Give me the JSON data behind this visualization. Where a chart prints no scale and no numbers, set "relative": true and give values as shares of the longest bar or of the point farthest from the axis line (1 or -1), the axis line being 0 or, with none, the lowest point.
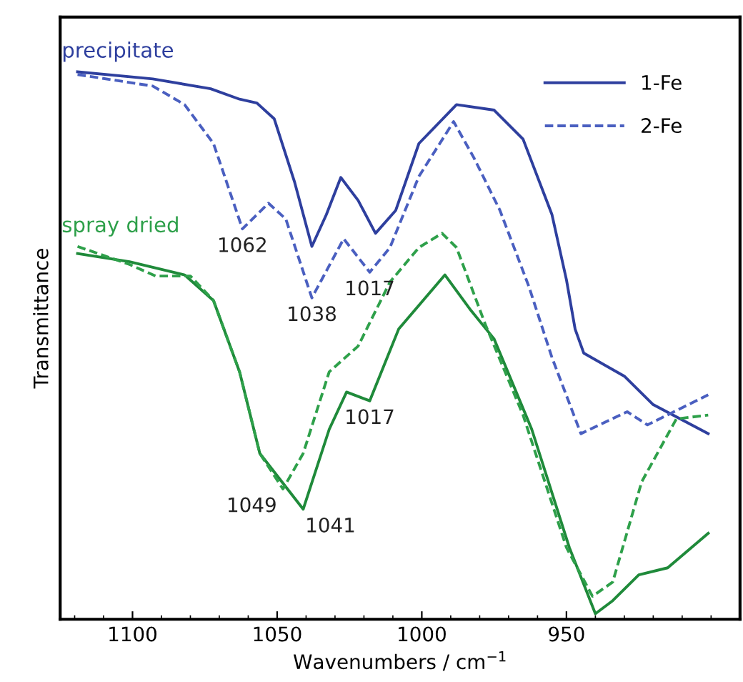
{
  "chart_data": {
    "type": "line",
    "xlabel": "Wavenumbers / cm$^{−1}$",
    "ylabel": "Transmittance",
    "relative": true,
    "xlim": [
      1125,
      890
    ],
    "xticks": [
      1100,
      1050,
      1000,
      950
    ],
    "legend": "top right",
    "grid": false,
    "annotations": [
      {
        "text": "precipitate",
        "x": 1119,
        "y": 1.0
      },
      {
        "text": "spray dried",
        "x": 1119,
        "y": 0.681
      },
      {
        "text": "1062",
        "x": 1062,
        "y": 0.713
      },
      {
        "text": "1038",
        "x": 1038,
        "y": 0.587
      },
      {
        "text": "1017",
        "x": 1018,
        "y": 0.634
      },
      {
        "text": "1049",
        "x": 1048,
        "y": 0.238
      },
      {
        "text": "1041",
        "x": 1041,
        "y": 0.201
      },
      {
        "text": "1017",
        "x": 1018,
        "y": 0.399
      }
    ],
    "series": [
      {
        "name": "1-Fe",
        "color": "#2e3f9e",
        "line_style": "solid",
        "x": [
          1119,
          1093,
          1073,
          1063,
          1057,
          1051,
          1044,
          1038,
          1033,
          1028,
          1022,
          1016,
          1009,
          1001,
          988,
          975,
          965,
          955,
          950,
          947,
          944,
          930,
          920,
          901
        ],
        "values": [
          1.0,
          0.987,
          0.969,
          0.95,
          0.943,
          0.914,
          0.799,
          0.681,
          0.739,
          0.807,
          0.765,
          0.705,
          0.747,
          0.869,
          0.94,
          0.93,
          0.877,
          0.739,
          0.62,
          0.53,
          0.486,
          0.444,
          0.392,
          0.339
        ]
      },
      {
        "name": "2-Fe",
        "color": "#4a5fc0",
        "line_style": "dashed",
        "x": [
          1119,
          1093,
          1082,
          1072,
          1062,
          1053,
          1047,
          1038,
          1027,
          1018,
          1011,
          1001,
          989,
          982,
          973,
          963,
          955,
          945,
          929,
          922,
          901
        ],
        "values": [
          0.995,
          0.974,
          0.94,
          0.869,
          0.713,
          0.76,
          0.731,
          0.587,
          0.695,
          0.634,
          0.679,
          0.809,
          0.909,
          0.843,
          0.747,
          0.608,
          0.478,
          0.339,
          0.379,
          0.355,
          0.41
        ]
      },
      {
        "color": "#1f8a3a",
        "line_style": "solid",
        "x": [
          1119,
          1101,
          1082,
          1072,
          1063,
          1056,
          1041,
          1032,
          1026,
          1018,
          1008,
          992,
          983,
          975,
          962,
          949,
          940,
          934,
          925,
          915,
          901
        ],
        "values": [
          0.668,
          0.653,
          0.629,
          0.582,
          0.452,
          0.303,
          0.201,
          0.347,
          0.415,
          0.399,
          0.53,
          0.629,
          0.564,
          0.512,
          0.347,
          0.131,
          0.01,
          0.034,
          0.081,
          0.094,
          0.157
        ]
      },
      {
        "color": "#2ea04a",
        "line_style": "dashed",
        "x": [
          1119,
          1101,
          1092,
          1080,
          1072,
          1063,
          1056,
          1048,
          1041,
          1032,
          1022,
          1011,
          1001,
          993,
          988,
          978,
          965,
          950,
          941,
          934,
          924,
          912,
          901
        ],
        "values": [
          0.681,
          0.648,
          0.627,
          0.627,
          0.582,
          0.452,
          0.303,
          0.238,
          0.303,
          0.452,
          0.499,
          0.616,
          0.679,
          0.705,
          0.679,
          0.538,
          0.373,
          0.131,
          0.042,
          0.068,
          0.251,
          0.366,
          0.373
        ]
      }
    ]
  }
}
